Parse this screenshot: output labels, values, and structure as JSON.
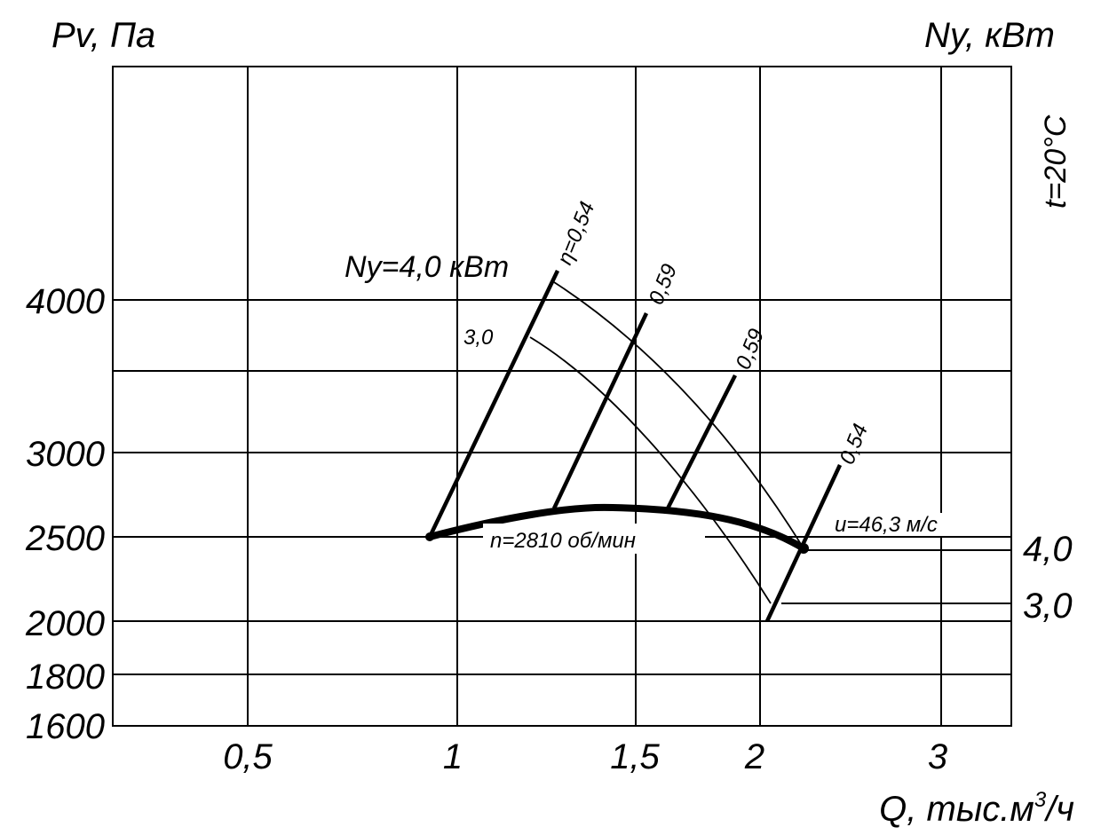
{
  "chart_data": {
    "type": "line",
    "title": "",
    "ylabel_left": "Pv, Па",
    "ylabel_right": "Ny, кВт",
    "xlabel_prefix": "Q, тыс.м",
    "xlabel_sup": "3",
    "xlabel_suffix": "/ч",
    "temperature_note": "t=20°C",
    "x_ticks": [
      "0,5",
      "1",
      "1,5",
      "2",
      "3"
    ],
    "y_ticks": [
      "4000",
      "3000",
      "2500",
      "2000",
      "1800",
      "1600"
    ],
    "y_right_ticks": [
      "4,0",
      "3,0"
    ],
    "ylim": [
      1600,
      6000
    ],
    "xlim": [
      0.25,
      3.5
    ],
    "grid": true,
    "pressure_curve": {
      "name": "n=2810 об/мин",
      "points": [
        [
          0.9,
          2500
        ],
        [
          1.3,
          2640
        ],
        [
          1.55,
          2650
        ],
        [
          1.8,
          2600
        ],
        [
          2.1,
          2420
        ]
      ]
    },
    "power_curves": [
      {
        "label": "Ny=4,0 кВт",
        "points": [
          [
            1.2,
            4100
          ],
          [
            1.55,
            3640
          ],
          [
            1.85,
            3180
          ],
          [
            2.1,
            2420
          ]
        ]
      },
      {
        "label": "3,0",
        "points": [
          [
            1.18,
            3810
          ],
          [
            1.5,
            3330
          ],
          [
            1.8,
            2860
          ],
          [
            2.0,
            2190
          ]
        ]
      }
    ],
    "efficiency_rays": [
      {
        "label": "η=0,54",
        "from": [
          0.9,
          2500
        ],
        "to": [
          1.2,
          4100
        ]
      },
      {
        "label": "0,59",
        "from": [
          1.24,
          2640
        ],
        "to": [
          1.5,
          3850
        ]
      },
      {
        "label": "0,59",
        "from": [
          1.6,
          2630
        ],
        "to": [
          1.8,
          3500
        ]
      },
      {
        "label": "0,54",
        "from": [
          2.0,
          2000
        ],
        "to": [
          2.2,
          2950
        ]
      }
    ],
    "annotations": {
      "velocity": "u=46,3 м/с"
    }
  }
}
